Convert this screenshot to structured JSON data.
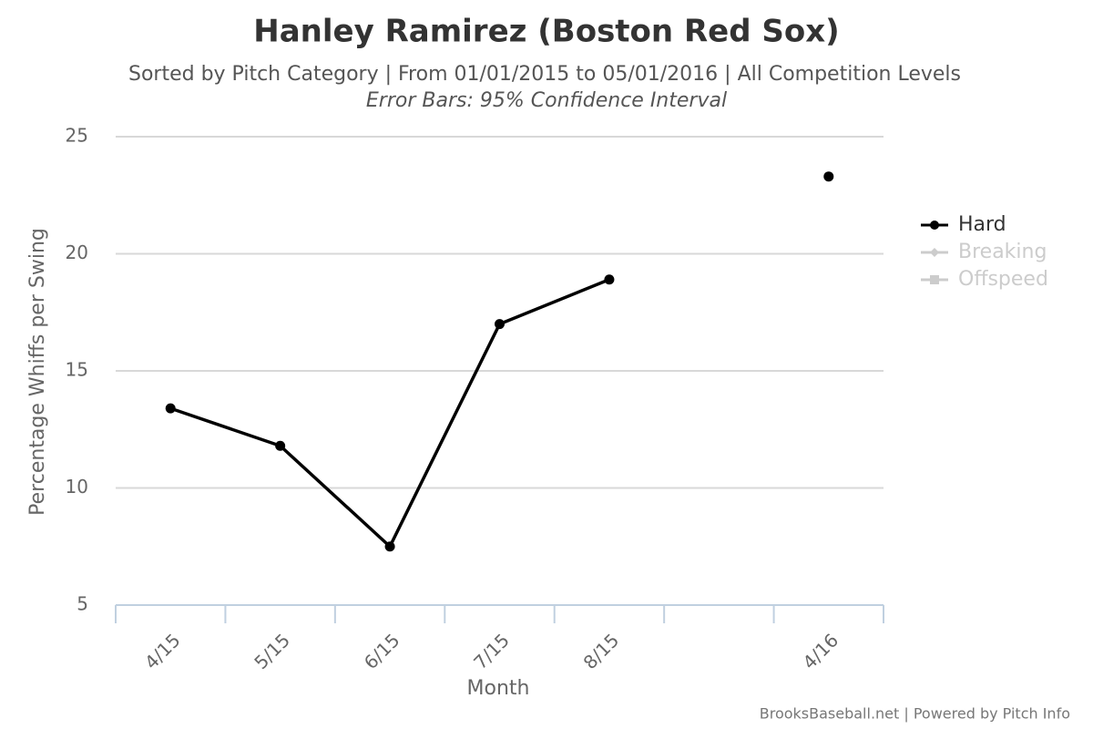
{
  "chart_data": {
    "type": "line",
    "title": "Hanley Ramirez (Boston Red Sox)",
    "subtitle": "Sorted by Pitch Category | From 01/01/2015 to 05/01/2016 | All Competition Levels",
    "annotation": "Error Bars: 95% Confidence Interval",
    "x_label": "Month",
    "y_label": "Percentage Whiffs per Swing",
    "credit": "BrooksBaseball.net | Powered by Pitch Info",
    "categories": [
      "4/15",
      "5/15",
      "6/15",
      "7/15",
      "8/15",
      null,
      "4/16"
    ],
    "series": [
      {
        "name": "Hard",
        "color": "#000000",
        "visible": true,
        "values": [
          13.4,
          11.8,
          7.5,
          17.0,
          18.9,
          null,
          23.3
        ]
      },
      {
        "name": "Breaking",
        "color": "#cccccc",
        "visible": false,
        "values": [
          null,
          null,
          null,
          null,
          null,
          null,
          null
        ]
      },
      {
        "name": "Offspeed",
        "color": "#cccccc",
        "visible": false,
        "values": [
          null,
          null,
          null,
          null,
          null,
          null,
          null
        ]
      }
    ],
    "ylim": [
      5,
      25
    ],
    "yticks": [
      5,
      10,
      15,
      20,
      25
    ],
    "grid": true,
    "legend": "right"
  }
}
